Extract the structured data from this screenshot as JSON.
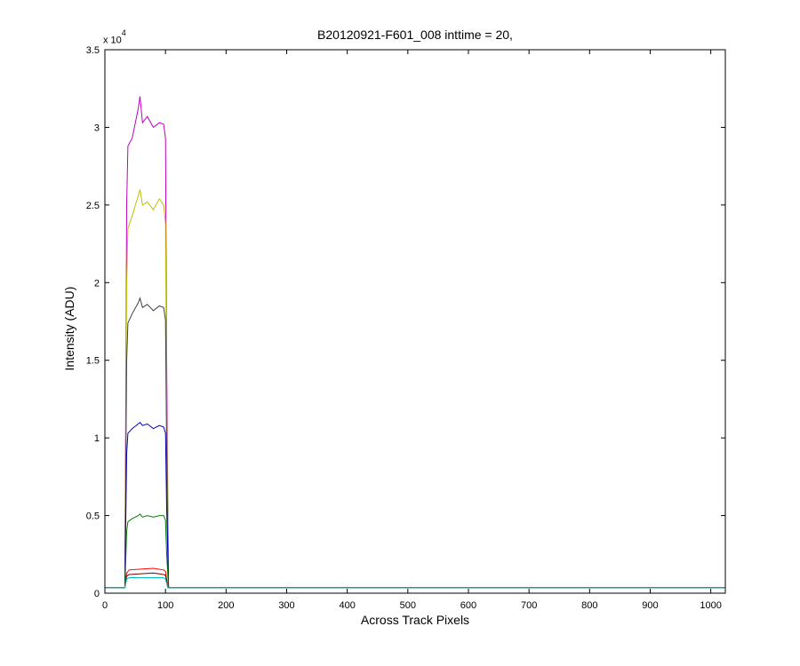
{
  "chart_data": {
    "type": "line",
    "title": "B20120921-F601_008 inttime = 20,",
    "xlabel": "Across Track Pixels",
    "ylabel": "Intensity (ADU)",
    "y_multiplier": "x 10",
    "y_multiplier_exponent": "4",
    "xlim": [
      0,
      1024
    ],
    "ylim": [
      0,
      3.5
    ],
    "xticks": [
      0,
      100,
      200,
      300,
      400,
      500,
      600,
      700,
      800,
      900,
      1000
    ],
    "yticks": [
      0,
      0.5,
      1,
      1.5,
      2,
      2.5,
      3,
      3.5
    ],
    "ytick_labels": [
      "0",
      "0.5",
      "1",
      "1.5",
      "2",
      "2.5",
      "3",
      "3.5"
    ],
    "grid": false,
    "series_note": "Each series is an illuminated band roughly from pixel 35 to 105 with a baseline near 0.035 elsewhere (values in units of 10^4 ADU).",
    "series": [
      {
        "color": "#bf00bf",
        "points": [
          [
            0,
            0.035
          ],
          [
            33,
            0.035
          ],
          [
            36,
            2.5
          ],
          [
            38,
            2.88
          ],
          [
            45,
            2.93
          ],
          [
            55,
            3.12
          ],
          [
            58,
            3.2
          ],
          [
            62,
            3.03
          ],
          [
            70,
            3.07
          ],
          [
            80,
            3.0
          ],
          [
            90,
            3.03
          ],
          [
            97,
            3.02
          ],
          [
            100,
            2.93
          ],
          [
            102,
            1.5
          ],
          [
            105,
            0.035
          ],
          [
            1024,
            0.035
          ]
        ]
      },
      {
        "color": "#bfbf00",
        "points": [
          [
            0,
            0.035
          ],
          [
            33,
            0.035
          ],
          [
            36,
            2.0
          ],
          [
            38,
            2.35
          ],
          [
            45,
            2.43
          ],
          [
            55,
            2.56
          ],
          [
            58,
            2.6
          ],
          [
            62,
            2.5
          ],
          [
            70,
            2.52
          ],
          [
            80,
            2.47
          ],
          [
            90,
            2.54
          ],
          [
            97,
            2.5
          ],
          [
            100,
            2.38
          ],
          [
            102,
            1.2
          ],
          [
            105,
            0.035
          ],
          [
            1024,
            0.035
          ]
        ]
      },
      {
        "color": "#404040",
        "points": [
          [
            0,
            0.035
          ],
          [
            33,
            0.035
          ],
          [
            36,
            1.5
          ],
          [
            38,
            1.74
          ],
          [
            45,
            1.8
          ],
          [
            55,
            1.87
          ],
          [
            58,
            1.9
          ],
          [
            62,
            1.84
          ],
          [
            70,
            1.86
          ],
          [
            80,
            1.82
          ],
          [
            90,
            1.85
          ],
          [
            97,
            1.84
          ],
          [
            100,
            1.76
          ],
          [
            102,
            0.9
          ],
          [
            105,
            0.035
          ],
          [
            1024,
            0.035
          ]
        ]
      },
      {
        "color": "#0000bf",
        "points": [
          [
            0,
            0.035
          ],
          [
            33,
            0.035
          ],
          [
            36,
            0.9
          ],
          [
            38,
            1.03
          ],
          [
            45,
            1.06
          ],
          [
            55,
            1.09
          ],
          [
            58,
            1.1
          ],
          [
            62,
            1.08
          ],
          [
            70,
            1.09
          ],
          [
            80,
            1.06
          ],
          [
            90,
            1.08
          ],
          [
            97,
            1.07
          ],
          [
            100,
            1.03
          ],
          [
            102,
            0.55
          ],
          [
            105,
            0.035
          ],
          [
            1024,
            0.035
          ]
        ]
      },
      {
        "color": "#007f00",
        "points": [
          [
            0,
            0.035
          ],
          [
            33,
            0.035
          ],
          [
            36,
            0.4
          ],
          [
            38,
            0.46
          ],
          [
            45,
            0.48
          ],
          [
            55,
            0.5
          ],
          [
            58,
            0.51
          ],
          [
            62,
            0.49
          ],
          [
            70,
            0.5
          ],
          [
            80,
            0.49
          ],
          [
            90,
            0.5
          ],
          [
            97,
            0.5
          ],
          [
            100,
            0.47
          ],
          [
            102,
            0.25
          ],
          [
            105,
            0.035
          ],
          [
            1024,
            0.035
          ]
        ]
      },
      {
        "color": "#ff0000",
        "points": [
          [
            0,
            0.035
          ],
          [
            33,
            0.035
          ],
          [
            36,
            0.13
          ],
          [
            40,
            0.15
          ],
          [
            60,
            0.155
          ],
          [
            80,
            0.16
          ],
          [
            97,
            0.15
          ],
          [
            100,
            0.14
          ],
          [
            104,
            0.035
          ],
          [
            1024,
            0.035
          ]
        ]
      },
      {
        "color": "#7f0000",
        "points": [
          [
            0,
            0.035
          ],
          [
            33,
            0.035
          ],
          [
            36,
            0.11
          ],
          [
            40,
            0.12
          ],
          [
            60,
            0.125
          ],
          [
            80,
            0.13
          ],
          [
            97,
            0.12
          ],
          [
            100,
            0.115
          ],
          [
            104,
            0.035
          ],
          [
            1024,
            0.035
          ]
        ]
      },
      {
        "color": "#00bfbf",
        "points": [
          [
            0,
            0.035
          ],
          [
            33,
            0.035
          ],
          [
            36,
            0.09
          ],
          [
            40,
            0.1
          ],
          [
            60,
            0.1
          ],
          [
            80,
            0.1
          ],
          [
            97,
            0.1
          ],
          [
            100,
            0.09
          ],
          [
            104,
            0.035
          ],
          [
            1024,
            0.035
          ]
        ]
      }
    ]
  }
}
